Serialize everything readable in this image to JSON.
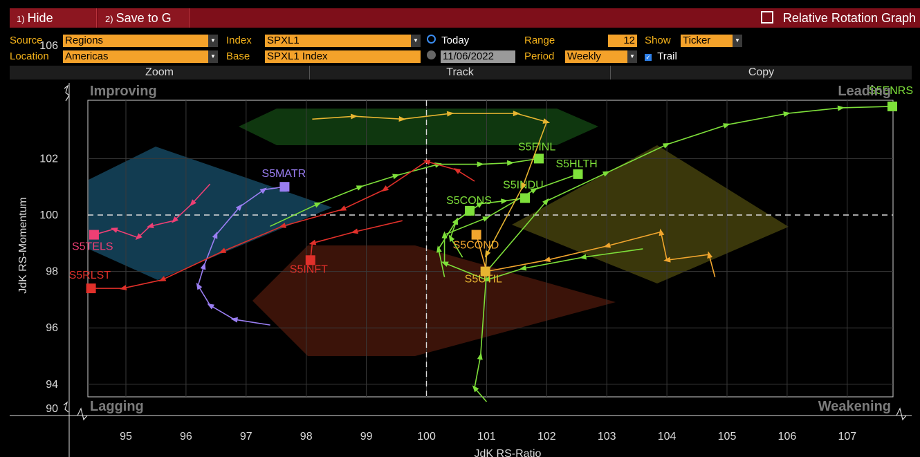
{
  "toolbar": {
    "hide_num": "1)",
    "hide_label": "Hide",
    "save_num": "2)",
    "save_label": "Save to G",
    "title": "Relative Rotation Graph"
  },
  "controls": {
    "source_label": "Source",
    "source_value": "Regions",
    "location_label": "Location",
    "location_value": "Americas",
    "index_label": "Index",
    "index_value": "SPXL1",
    "base_label": "Base",
    "base_value": "SPXL1 Index",
    "today_label": "Today",
    "date_value": "11/06/2022",
    "range_label": "Range",
    "range_value": "12",
    "period_label": "Period",
    "period_value": "Weekly",
    "show_label": "Show",
    "show_value": "Ticker",
    "trail_label": "Trail"
  },
  "subbar": {
    "zoom": "Zoom",
    "track": "Track",
    "copy": "Copy"
  },
  "colors": {
    "green": "#7ee03a",
    "orange": "#f2a62e",
    "gold": "#e7b531",
    "red": "#e0302a",
    "pink": "#ee3f74",
    "purple": "#9a7ef2",
    "axis_text": "#dcdcdc",
    "quad_text": "#7c7c7c",
    "improving_zone": "#133f55",
    "leading_zone": "#103a10",
    "weakening_zone": "#3d3a0c",
    "lagging_zone": "#3e140a"
  },
  "chart_data": {
    "type": "scatter",
    "xlabel": "JdK RS-Ratio",
    "ylabel": "JdK RS-Momentum",
    "xlim": [
      94.25,
      107.75
    ],
    "x_ticks": [
      "95",
      "96",
      "97",
      "98",
      "99",
      "100",
      "101",
      "102",
      "103",
      "104",
      "105",
      "106",
      "107"
    ],
    "y_ticks": [
      "106",
      "102",
      "100",
      "98",
      "96",
      "94",
      "90"
    ],
    "quadrants": [
      "Improving",
      "Leading",
      "Lagging",
      "Weakening"
    ],
    "series": [
      {
        "name": "S5ENRS",
        "color": "#7ee03a",
        "tail": [
          [
            101.0,
            91.0
          ],
          [
            100.8,
            93.0
          ],
          [
            100.9,
            95.0
          ],
          [
            101.0,
            98.0
          ],
          [
            102.0,
            100.5
          ],
          [
            103.0,
            101.5
          ],
          [
            104.0,
            102.5
          ],
          [
            105.0,
            103.2
          ],
          [
            106.0,
            103.6
          ],
          [
            106.9,
            103.8
          ],
          [
            107.75,
            103.85
          ]
        ]
      },
      {
        "name": "S5FINL",
        "color": "#7ee03a",
        "tail": [
          [
            97.4,
            99.6
          ],
          [
            98.2,
            100.4
          ],
          [
            98.9,
            101.0
          ],
          [
            99.5,
            101.4
          ],
          [
            100.2,
            101.8
          ],
          [
            100.9,
            101.8
          ],
          [
            101.4,
            101.85
          ],
          [
            101.87,
            102.0
          ]
        ]
      },
      {
        "name": "S5HLTH",
        "color": "#7ee03a",
        "tail": [
          [
            103.6,
            98.8
          ],
          [
            102.6,
            98.5
          ],
          [
            101.6,
            98.1
          ],
          [
            101.0,
            97.7
          ],
          [
            100.3,
            98.3
          ],
          [
            100.3,
            99.3
          ],
          [
            101.0,
            99.9
          ],
          [
            101.8,
            100.9
          ],
          [
            102.52,
            101.45
          ]
        ]
      },
      {
        "name": "S5INDU",
        "color": "#7ee03a",
        "tail": [
          [
            100.3,
            97.8
          ],
          [
            100.2,
            98.8
          ],
          [
            100.5,
            99.8
          ],
          [
            100.9,
            100.4
          ],
          [
            101.3,
            100.5
          ],
          [
            101.64,
            100.6
          ]
        ]
      },
      {
        "name": "S5CONS",
        "color": "#7ee03a",
        "tail": [
          [
            100.6,
            98.5
          ],
          [
            100.4,
            99.2
          ],
          [
            100.5,
            99.8
          ],
          [
            100.72,
            100.15
          ]
        ]
      },
      {
        "name": "S5MATR",
        "color": "#9a7ef2",
        "tail": [
          [
            97.4,
            96.1
          ],
          [
            96.8,
            96.3
          ],
          [
            96.4,
            96.8
          ],
          [
            96.2,
            97.5
          ],
          [
            96.3,
            98.2
          ],
          [
            96.5,
            99.3
          ],
          [
            96.9,
            100.3
          ],
          [
            97.3,
            100.9
          ],
          [
            97.64,
            101.0
          ]
        ]
      },
      {
        "name": "S5TELS",
        "color": "#ee3f74",
        "tail": [
          [
            96.4,
            101.1
          ],
          [
            96.1,
            100.4
          ],
          [
            95.8,
            99.8
          ],
          [
            95.4,
            99.6
          ],
          [
            95.2,
            99.2
          ],
          [
            94.8,
            99.5
          ],
          [
            94.47,
            99.3
          ]
        ]
      },
      {
        "name": "S5RLST",
        "color": "#e0302a",
        "tail": [
          [
            100.8,
            101.2
          ],
          [
            100.5,
            101.6
          ],
          [
            100.0,
            101.9
          ],
          [
            99.3,
            100.9
          ],
          [
            98.6,
            100.2
          ],
          [
            97.6,
            99.6
          ],
          [
            96.6,
            98.7
          ],
          [
            95.6,
            97.7
          ],
          [
            94.95,
            97.4
          ],
          [
            94.42,
            97.4
          ]
        ]
      },
      {
        "name": "S5INFT",
        "color": "#e0302a",
        "tail": [
          [
            99.6,
            99.8
          ],
          [
            98.8,
            99.4
          ],
          [
            98.1,
            99.0
          ],
          [
            98.07,
            98.4
          ]
        ]
      },
      {
        "name": "S5COND",
        "color": "#f2a62e",
        "tail": [
          [
            104.8,
            97.8
          ],
          [
            104.7,
            98.6
          ],
          [
            104.0,
            98.4
          ],
          [
            103.9,
            99.4
          ],
          [
            103.0,
            98.9
          ],
          [
            102.0,
            98.4
          ],
          [
            101.0,
            98.0
          ],
          [
            100.83,
            99.3
          ]
        ]
      },
      {
        "name": "S5UTIL",
        "color": "#e7b531",
        "tail": [
          [
            98.1,
            103.4
          ],
          [
            98.8,
            103.5
          ],
          [
            99.6,
            103.4
          ],
          [
            100.4,
            103.6
          ],
          [
            101.5,
            103.6
          ],
          [
            102.0,
            103.3
          ],
          [
            101.6,
            101.0
          ],
          [
            101.0,
            98.6
          ],
          [
            100.98,
            98.0
          ]
        ]
      }
    ]
  }
}
